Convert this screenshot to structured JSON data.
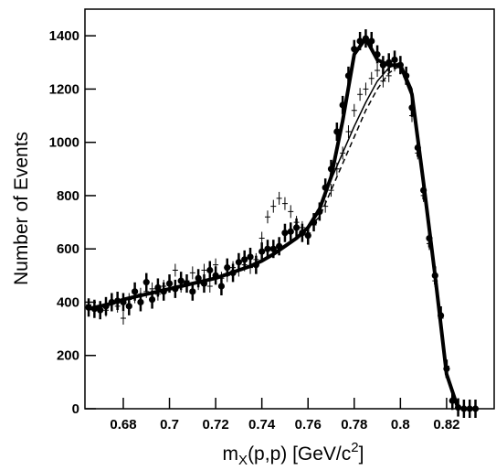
{
  "chart_data": {
    "type": "scatter",
    "y_label": "Number of Events",
    "x_label": {
      "main": "m",
      "sub": "X",
      "mid": "(p,p) [GeV/c",
      "sup": "2",
      "end": "]"
    },
    "xlim": [
      0.6634,
      0.8406
    ],
    "ylim": [
      0,
      1500
    ],
    "xticks": [
      0.68,
      0.7,
      0.72,
      0.74,
      0.76,
      0.78,
      0.8,
      0.82
    ],
    "yticks": [
      0,
      200,
      400,
      600,
      800,
      1000,
      1200,
      1400
    ],
    "series": [
      {
        "style": "cross",
        "color": "#000000",
        "x": [
          0.665,
          0.6675,
          0.67,
          0.6725,
          0.675,
          0.6775,
          0.68,
          0.6825,
          0.685,
          0.6875,
          0.69,
          0.6925,
          0.695,
          0.6975,
          0.7,
          0.7025,
          0.705,
          0.7075,
          0.71,
          0.7125,
          0.715,
          0.7175,
          0.72,
          0.7225,
          0.725,
          0.7275,
          0.73,
          0.7325,
          0.735,
          0.7375,
          0.74,
          0.7425,
          0.745,
          0.7475,
          0.75,
          0.7525,
          0.755,
          0.7575,
          0.76,
          0.7625,
          0.765,
          0.7675,
          0.77,
          0.7725,
          0.775,
          0.7775,
          0.78,
          0.7825,
          0.785,
          0.7875,
          0.79,
          0.7925,
          0.795,
          0.7975,
          0.8,
          0.8025,
          0.805,
          0.8075,
          0.81,
          0.8125,
          0.815,
          0.8175,
          0.82,
          0.8225,
          0.825
        ],
        "values": [
          390,
          380,
          375,
          370,
          395,
          385,
          340,
          410,
          420,
          430,
          440,
          450,
          430,
          460,
          470,
          520,
          460,
          480,
          510,
          470,
          520,
          460,
          540,
          490,
          500,
          530,
          520,
          540,
          530,
          560,
          640,
          720,
          760,
          790,
          770,
          740,
          700,
          680,
          660,
          690,
          740,
          760,
          820,
          900,
          960,
          1040,
          1120,
          1180,
          1200,
          1240,
          1270,
          1230,
          1250,
          1290,
          1280,
          1250,
          1100,
          960,
          800,
          620,
          480,
          340,
          160,
          30,
          0
        ]
      },
      {
        "style": "dot",
        "color": "#000000",
        "x": [
          0.665,
          0.6675,
          0.67,
          0.6725,
          0.675,
          0.6775,
          0.68,
          0.6825,
          0.685,
          0.6875,
          0.69,
          0.6925,
          0.695,
          0.6975,
          0.7,
          0.7025,
          0.705,
          0.7075,
          0.71,
          0.7125,
          0.715,
          0.7175,
          0.72,
          0.7225,
          0.725,
          0.7275,
          0.73,
          0.7325,
          0.735,
          0.7375,
          0.74,
          0.7425,
          0.745,
          0.7475,
          0.75,
          0.7525,
          0.755,
          0.7575,
          0.76,
          0.7625,
          0.765,
          0.7675,
          0.77,
          0.7725,
          0.775,
          0.7775,
          0.78,
          0.7825,
          0.785,
          0.7875,
          0.79,
          0.7925,
          0.795,
          0.7975,
          0.8,
          0.8025,
          0.805,
          0.8075,
          0.81,
          0.8125,
          0.815,
          0.8175,
          0.82,
          0.8225,
          0.825,
          0.8275,
          0.83,
          0.8325
        ],
        "values": [
          380,
          375,
          370,
          385,
          400,
          405,
          400,
          385,
          440,
          400,
          475,
          410,
          455,
          440,
          470,
          450,
          480,
          470,
          440,
          490,
          470,
          520,
          500,
          460,
          530,
          510,
          550,
          560,
          570,
          540,
          590,
          600,
          600,
          610,
          660,
          665,
          680,
          660,
          650,
          700,
          740,
          830,
          900,
          1040,
          1140,
          1250,
          1350,
          1380,
          1390,
          1380,
          1330,
          1290,
          1300,
          1310,
          1290,
          1250,
          1130,
          980,
          820,
          640,
          500,
          350,
          150,
          30,
          5,
          0,
          0,
          0
        ]
      },
      {
        "style": "dashed",
        "color": "#000000",
        "x": [
          0.665,
          0.67,
          0.675,
          0.68,
          0.685,
          0.69,
          0.695,
          0.7,
          0.705,
          0.71,
          0.715,
          0.72,
          0.725,
          0.73,
          0.735,
          0.74,
          0.745,
          0.75,
          0.755,
          0.76,
          0.765,
          0.77,
          0.775,
          0.78,
          0.785,
          0.79,
          0.795,
          0.8,
          0.805,
          0.81,
          0.815,
          0.82,
          0.825
        ],
        "values": [
          375,
          385,
          395,
          410,
          420,
          430,
          440,
          450,
          460,
          470,
          480,
          490,
          505,
          520,
          535,
          555,
          580,
          610,
          640,
          680,
          720,
          820,
          920,
          1020,
          1120,
          1200,
          1260,
          1290,
          1200,
          860,
          500,
          130,
          0
        ]
      },
      {
        "style": "thin",
        "color": "#000000",
        "x": [
          0.665,
          0.67,
          0.675,
          0.68,
          0.685,
          0.69,
          0.695,
          0.7,
          0.705,
          0.71,
          0.715,
          0.72,
          0.725,
          0.73,
          0.735,
          0.74,
          0.745,
          0.75,
          0.755,
          0.76,
          0.765,
          0.77,
          0.775,
          0.78,
          0.785,
          0.79,
          0.795,
          0.8,
          0.805,
          0.81,
          0.815,
          0.82,
          0.825
        ],
        "values": [
          375,
          385,
          395,
          410,
          420,
          430,
          440,
          450,
          460,
          470,
          480,
          490,
          505,
          520,
          535,
          555,
          580,
          610,
          640,
          680,
          740,
          860,
          960,
          1060,
          1150,
          1230,
          1280,
          1300,
          1200,
          860,
          500,
          130,
          0
        ]
      },
      {
        "style": "thick",
        "color": "#000000",
        "x": [
          0.665,
          0.67,
          0.675,
          0.68,
          0.685,
          0.69,
          0.695,
          0.7,
          0.705,
          0.71,
          0.715,
          0.72,
          0.725,
          0.73,
          0.735,
          0.74,
          0.745,
          0.75,
          0.755,
          0.76,
          0.765,
          0.77,
          0.775,
          0.78,
          0.785,
          0.79,
          0.795,
          0.8,
          0.805,
          0.81,
          0.815,
          0.82,
          0.825
        ],
        "values": [
          375,
          385,
          395,
          410,
          420,
          430,
          440,
          450,
          460,
          470,
          480,
          490,
          505,
          520,
          535,
          555,
          580,
          610,
          640,
          680,
          750,
          870,
          1080,
          1330,
          1390,
          1310,
          1290,
          1290,
          1180,
          850,
          500,
          130,
          0
        ]
      }
    ]
  }
}
